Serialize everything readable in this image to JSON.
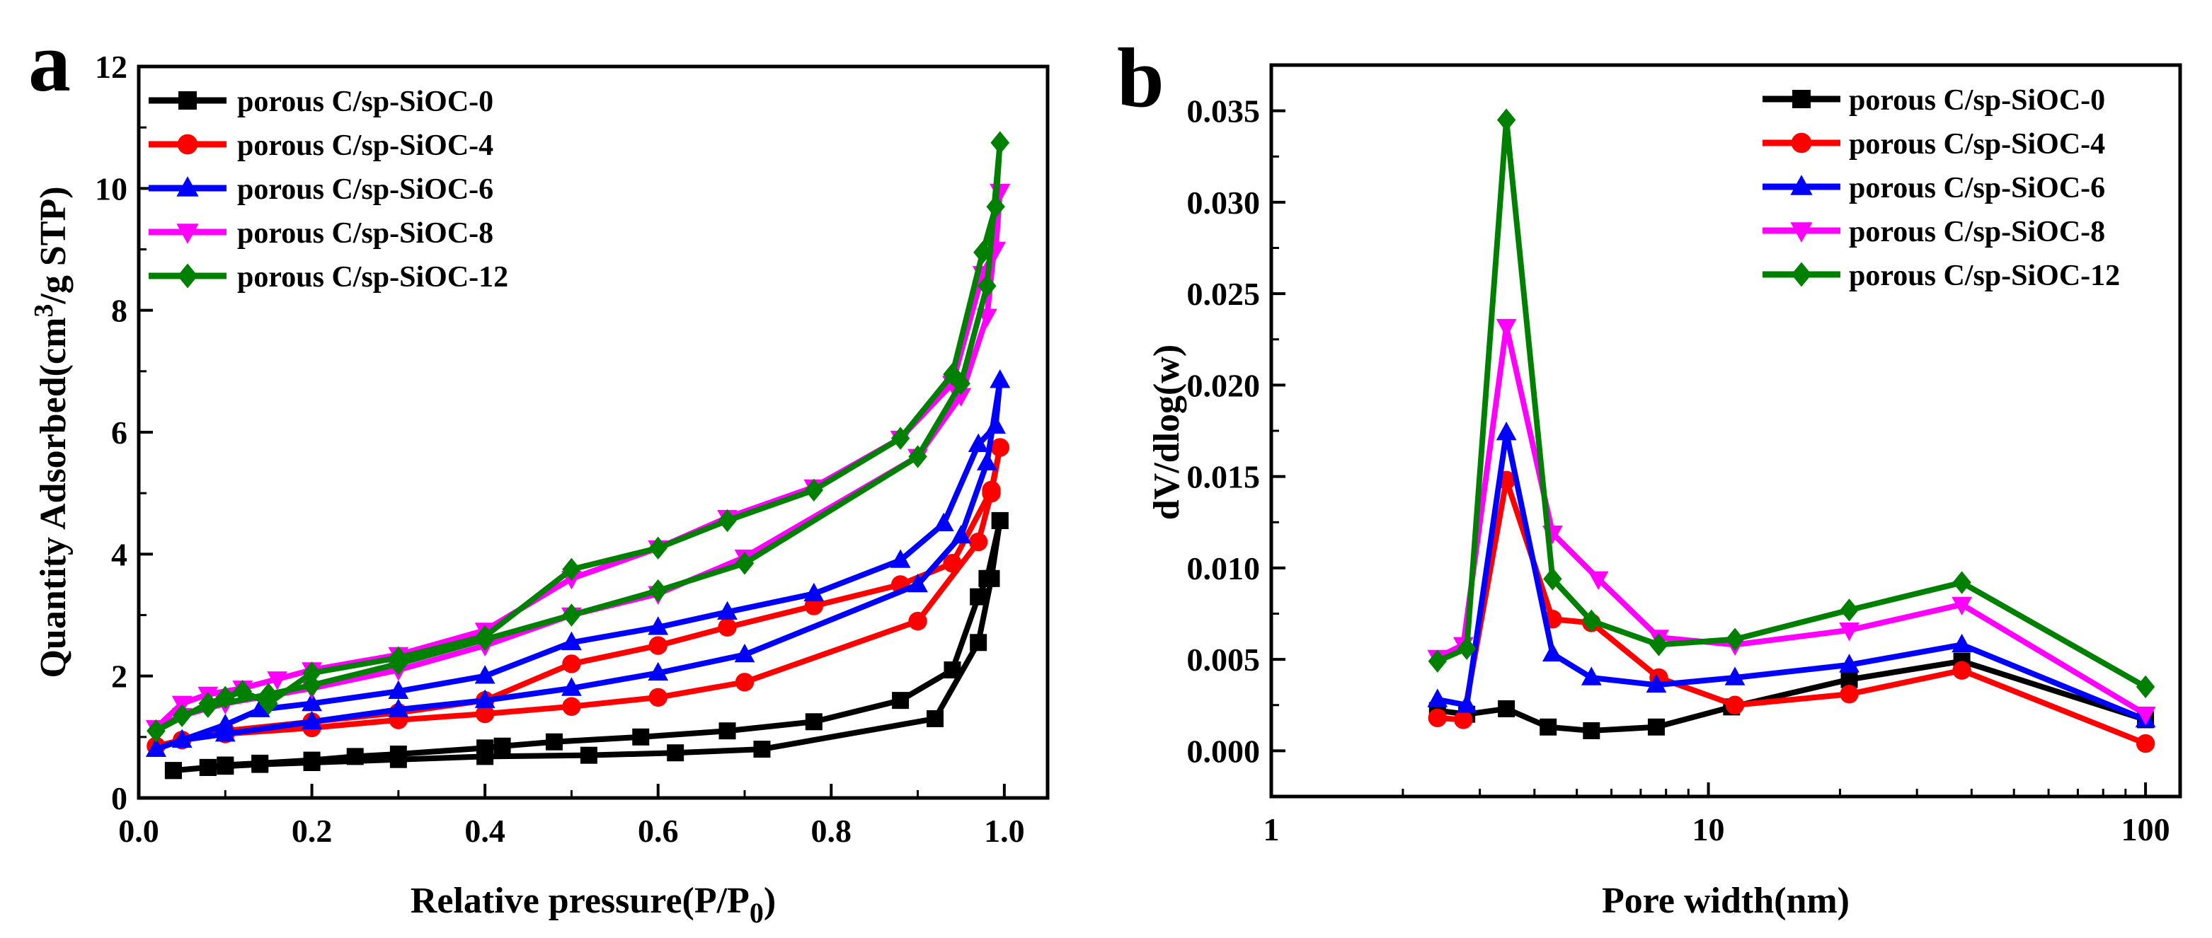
{
  "colors": {
    "s0": "#000000",
    "s4": "#ff0000",
    "s6": "#0000ff",
    "s8": "#ff00ff",
    "s12": "#008000"
  },
  "chart_data": [
    {
      "panel_label": "a",
      "type": "line",
      "title": "",
      "xlabel_main": "Relative pressure(P/P",
      "xlabel_sub": "0",
      "xlabel_close": ")",
      "ylabel_main": "Quantity Adsorbed(cm",
      "ylabel_sup": "3",
      "ylabel_close": "/g STP)",
      "xlim": [
        0.0,
        1.05
      ],
      "ylim": [
        0,
        12
      ],
      "x_ticks": [
        "0.0",
        "0.2",
        "0.4",
        "0.6",
        "0.8",
        "1.0"
      ],
      "y_ticks": [
        "0",
        "2",
        "4",
        "6",
        "8",
        "10",
        "12"
      ],
      "legend_position": "top-left",
      "series": [
        {
          "name": "porous C/sp-SiOC-0",
          "color_key": "s0",
          "marker": "square",
          "adsorption": [
            [
              0.04,
              0.45
            ],
            [
              0.08,
              0.5
            ],
            [
              0.1,
              0.52
            ],
            [
              0.14,
              0.55
            ],
            [
              0.2,
              0.58
            ],
            [
              0.3,
              0.63
            ],
            [
              0.4,
              0.68
            ],
            [
              0.52,
              0.7
            ],
            [
              0.62,
              0.74
            ],
            [
              0.72,
              0.8
            ],
            [
              0.92,
              1.3
            ],
            [
              0.97,
              2.55
            ],
            [
              0.985,
              3.6
            ],
            [
              0.995,
              4.55
            ]
          ],
          "desorption": [
            [
              0.995,
              4.55
            ],
            [
              0.98,
              3.6
            ],
            [
              0.97,
              3.3
            ],
            [
              0.94,
              2.1
            ],
            [
              0.88,
              1.6
            ],
            [
              0.78,
              1.25
            ],
            [
              0.68,
              1.1
            ],
            [
              0.58,
              1.0
            ],
            [
              0.48,
              0.92
            ],
            [
              0.42,
              0.85
            ],
            [
              0.4,
              0.82
            ],
            [
              0.3,
              0.72
            ],
            [
              0.25,
              0.68
            ],
            [
              0.2,
              0.62
            ],
            [
              0.14,
              0.57
            ],
            [
              0.1,
              0.54
            ],
            [
              0.08,
              0.5
            ],
            [
              0.04,
              0.45
            ]
          ]
        },
        {
          "name": "porous C/sp-SiOC-4",
          "color_key": "s4",
          "marker": "circle",
          "adsorption": [
            [
              0.02,
              0.85
            ],
            [
              0.05,
              0.95
            ],
            [
              0.1,
              1.05
            ],
            [
              0.2,
              1.15
            ],
            [
              0.3,
              1.28
            ],
            [
              0.4,
              1.38
            ],
            [
              0.5,
              1.5
            ],
            [
              0.6,
              1.65
            ],
            [
              0.7,
              1.9
            ],
            [
              0.9,
              2.9
            ],
            [
              0.97,
              4.2
            ],
            [
              0.985,
              5.0
            ],
            [
              0.995,
              5.75
            ]
          ],
          "desorption": [
            [
              0.995,
              5.75
            ],
            [
              0.985,
              5.05
            ],
            [
              0.94,
              3.85
            ],
            [
              0.88,
              3.5
            ],
            [
              0.78,
              3.15
            ],
            [
              0.68,
              2.8
            ],
            [
              0.6,
              2.5
            ],
            [
              0.5,
              2.2
            ],
            [
              0.4,
              1.6
            ],
            [
              0.3,
              1.4
            ],
            [
              0.2,
              1.25
            ],
            [
              0.1,
              1.1
            ],
            [
              0.02,
              0.85
            ]
          ]
        },
        {
          "name": "porous C/sp-SiOC-6",
          "color_key": "s6",
          "marker": "triangle-up",
          "adsorption": [
            [
              0.02,
              0.8
            ],
            [
              0.05,
              0.95
            ],
            [
              0.1,
              1.05
            ],
            [
              0.2,
              1.25
            ],
            [
              0.3,
              1.45
            ],
            [
              0.4,
              1.6
            ],
            [
              0.5,
              1.8
            ],
            [
              0.6,
              2.05
            ],
            [
              0.7,
              2.35
            ],
            [
              0.9,
              3.5
            ],
            [
              0.95,
              4.3
            ],
            [
              0.98,
              5.5
            ],
            [
              0.995,
              6.85
            ]
          ],
          "desorption": [
            [
              0.995,
              6.85
            ],
            [
              0.99,
              6.1
            ],
            [
              0.97,
              5.8
            ],
            [
              0.93,
              4.5
            ],
            [
              0.88,
              3.9
            ],
            [
              0.78,
              3.35
            ],
            [
              0.68,
              3.05
            ],
            [
              0.6,
              2.8
            ],
            [
              0.5,
              2.55
            ],
            [
              0.4,
              2.0
            ],
            [
              0.3,
              1.75
            ],
            [
              0.2,
              1.55
            ],
            [
              0.14,
              1.45
            ],
            [
              0.1,
              1.2
            ],
            [
              0.02,
              0.8
            ]
          ]
        },
        {
          "name": "porous C/sp-SiOC-8",
          "color_key": "s8",
          "marker": "triangle-down",
          "adsorption": [
            [
              0.02,
              1.15
            ],
            [
              0.05,
              1.35
            ],
            [
              0.1,
              1.55
            ],
            [
              0.2,
              1.8
            ],
            [
              0.3,
              2.1
            ],
            [
              0.4,
              2.5
            ],
            [
              0.5,
              3.0
            ],
            [
              0.6,
              3.35
            ],
            [
              0.7,
              3.95
            ],
            [
              0.9,
              5.6
            ],
            [
              0.95,
              6.6
            ],
            [
              0.98,
              7.9
            ],
            [
              0.995,
              9.95
            ]
          ],
          "desorption": [
            [
              0.995,
              9.95
            ],
            [
              0.99,
              9.0
            ],
            [
              0.975,
              8.6
            ],
            [
              0.94,
              6.8
            ],
            [
              0.88,
              5.9
            ],
            [
              0.78,
              5.1
            ],
            [
              0.68,
              4.6
            ],
            [
              0.6,
              4.1
            ],
            [
              0.5,
              3.6
            ],
            [
              0.4,
              2.75
            ],
            [
              0.3,
              2.35
            ],
            [
              0.2,
              2.1
            ],
            [
              0.16,
              1.95
            ],
            [
              0.12,
              1.8
            ],
            [
              0.08,
              1.7
            ],
            [
              0.05,
              1.55
            ],
            [
              0.02,
              1.15
            ]
          ]
        },
        {
          "name": "porous C/sp-SiOC-12",
          "color_key": "s12",
          "marker": "diamond",
          "adsorption": [
            [
              0.02,
              1.1
            ],
            [
              0.05,
              1.35
            ],
            [
              0.08,
              1.5
            ],
            [
              0.15,
              1.7
            ],
            [
              0.2,
              1.85
            ],
            [
              0.3,
              2.2
            ],
            [
              0.4,
              2.6
            ],
            [
              0.5,
              3.0
            ],
            [
              0.6,
              3.4
            ],
            [
              0.7,
              3.85
            ],
            [
              0.9,
              5.6
            ],
            [
              0.95,
              6.8
            ],
            [
              0.98,
              8.4
            ],
            [
              0.995,
              10.75
            ]
          ],
          "desorption": [
            [
              0.995,
              10.75
            ],
            [
              0.99,
              9.7
            ],
            [
              0.975,
              8.95
            ],
            [
              0.94,
              6.95
            ],
            [
              0.88,
              5.9
            ],
            [
              0.78,
              5.05
            ],
            [
              0.68,
              4.55
            ],
            [
              0.6,
              4.1
            ],
            [
              0.5,
              3.75
            ],
            [
              0.4,
              2.65
            ],
            [
              0.3,
              2.3
            ],
            [
              0.2,
              2.05
            ],
            [
              0.15,
              1.55
            ],
            [
              0.12,
              1.75
            ],
            [
              0.1,
              1.65
            ],
            [
              0.08,
              1.55
            ],
            [
              0.02,
              1.1
            ]
          ]
        }
      ]
    },
    {
      "panel_label": "b",
      "type": "line",
      "title": "",
      "xlabel": "Pore width(nm)",
      "ylabel": "dV/dlog(w)",
      "x_scale": "log",
      "xlim": [
        1,
        120
      ],
      "ylim": [
        -0.0025,
        0.0375
      ],
      "x_ticks": [
        {
          "value": 1,
          "label": "1"
        },
        {
          "value": 10,
          "label": "10"
        },
        {
          "value": 100,
          "label": "100"
        }
      ],
      "y_ticks": [
        "0.000",
        "0.005",
        "0.010",
        "0.015",
        "0.020",
        "0.025",
        "0.030",
        "0.035"
      ],
      "legend_position": "top-right",
      "series": [
        {
          "name": "porous C/sp-SiOC-0",
          "color_key": "s0",
          "marker": "square",
          "points": [
            [
              2.4,
              0.0022
            ],
            [
              2.8,
              0.002
            ],
            [
              3.45,
              0.0023
            ],
            [
              4.3,
              0.0013
            ],
            [
              5.4,
              0.0011
            ],
            [
              7.6,
              0.0013
            ],
            [
              11.3,
              0.0024
            ],
            [
              21,
              0.0039
            ],
            [
              38,
              0.0049
            ],
            [
              100,
              0.0017
            ]
          ]
        },
        {
          "name": "porous C/sp-SiOC-4",
          "color_key": "s4",
          "marker": "circle",
          "points": [
            [
              2.4,
              0.0018
            ],
            [
              2.75,
              0.0017
            ],
            [
              3.45,
              0.0148
            ],
            [
              4.4,
              0.0072
            ],
            [
              5.4,
              0.007
            ],
            [
              7.7,
              0.004
            ],
            [
              11.5,
              0.0025
            ],
            [
              21,
              0.0031
            ],
            [
              38,
              0.0044
            ],
            [
              100,
              0.0004
            ]
          ]
        },
        {
          "name": "porous C/sp-SiOC-6",
          "color_key": "s6",
          "marker": "triangle-up",
          "points": [
            [
              2.4,
              0.0028
            ],
            [
              2.8,
              0.0025
            ],
            [
              3.45,
              0.0174
            ],
            [
              4.4,
              0.0053
            ],
            [
              5.4,
              0.004
            ],
            [
              7.6,
              0.0036
            ],
            [
              11.5,
              0.004
            ],
            [
              21,
              0.0047
            ],
            [
              38,
              0.0058
            ],
            [
              100,
              0.0017
            ]
          ]
        },
        {
          "name": "porous C/sp-SiOC-8",
          "color_key": "s8",
          "marker": "triangle-down",
          "points": [
            [
              2.4,
              0.0051
            ],
            [
              2.75,
              0.0058
            ],
            [
              3.45,
              0.0232
            ],
            [
              4.4,
              0.0119
            ],
            [
              5.6,
              0.0094
            ],
            [
              7.7,
              0.0062
            ],
            [
              11.5,
              0.0058
            ],
            [
              21,
              0.0066
            ],
            [
              38,
              0.008
            ],
            [
              100,
              0.002
            ]
          ]
        },
        {
          "name": "porous C/sp-SiOC-12",
          "color_key": "s12",
          "marker": "diamond",
          "points": [
            [
              2.4,
              0.0049
            ],
            [
              2.8,
              0.0056
            ],
            [
              3.45,
              0.0345
            ],
            [
              4.4,
              0.0094
            ],
            [
              5.4,
              0.0071
            ],
            [
              7.7,
              0.0058
            ],
            [
              11.5,
              0.0061
            ],
            [
              21,
              0.0077
            ],
            [
              38,
              0.0092
            ],
            [
              100,
              0.0035
            ]
          ]
        }
      ]
    }
  ]
}
